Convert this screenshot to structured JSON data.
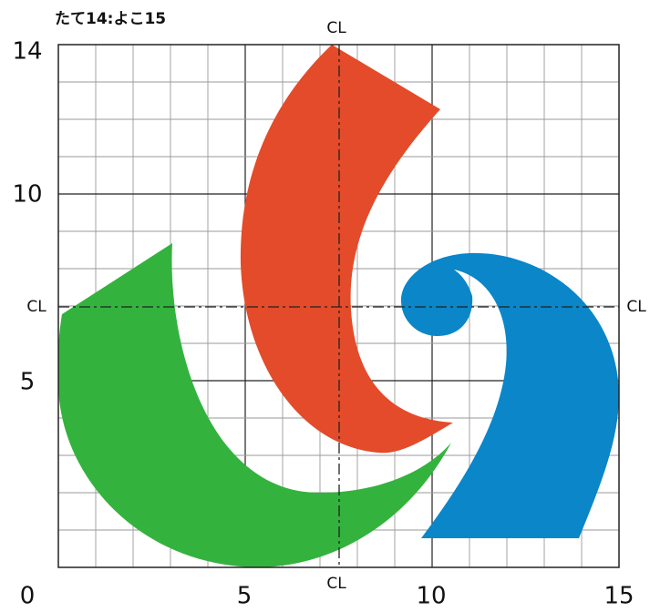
{
  "title": "たて14:よこ15",
  "x_labels": [
    "0",
    "5",
    "10",
    "15"
  ],
  "y_labels": [
    "14",
    "10",
    "5"
  ],
  "center_line_labels": {
    "top": "CL",
    "bottom": "CL",
    "left": "CL",
    "right": "CL"
  }
}
